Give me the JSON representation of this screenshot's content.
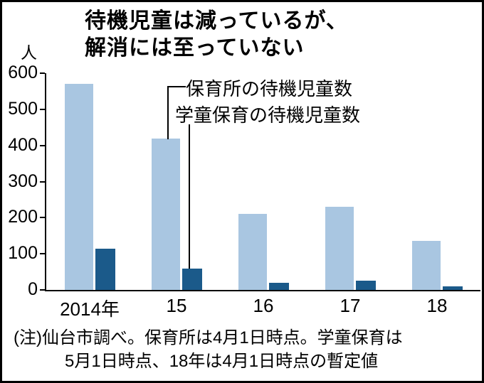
{
  "title": {
    "line1": "待機児童は減っているが、",
    "line2": "解消には至っていない"
  },
  "chart_data": {
    "type": "bar",
    "title": "待機児童は減っているが、解消には至っていない",
    "xlabel": "",
    "ylabel": "人",
    "categories": [
      "2014年",
      "15",
      "16",
      "17",
      "18"
    ],
    "series": [
      {
        "name": "保育所の待機児童数",
        "color": "#a9c6e1",
        "values": [
          570,
          420,
          210,
          230,
          135
        ]
      },
      {
        "name": "学童保育の待機児童数",
        "color": "#1b5a8a",
        "values": [
          115,
          60,
          20,
          25,
          10
        ]
      }
    ],
    "ylim": [
      0,
      600
    ],
    "yticks": [
      600,
      500,
      400,
      300,
      200,
      100,
      0
    ],
    "grid": false,
    "legend_position": "annotated-with-leader-lines"
  },
  "note": {
    "line1": "(注)仙台市調べ。保育所は4月1日時点。学童保育は",
    "line2": "5月1日時点、18年は4月1日時点の暫定値"
  }
}
